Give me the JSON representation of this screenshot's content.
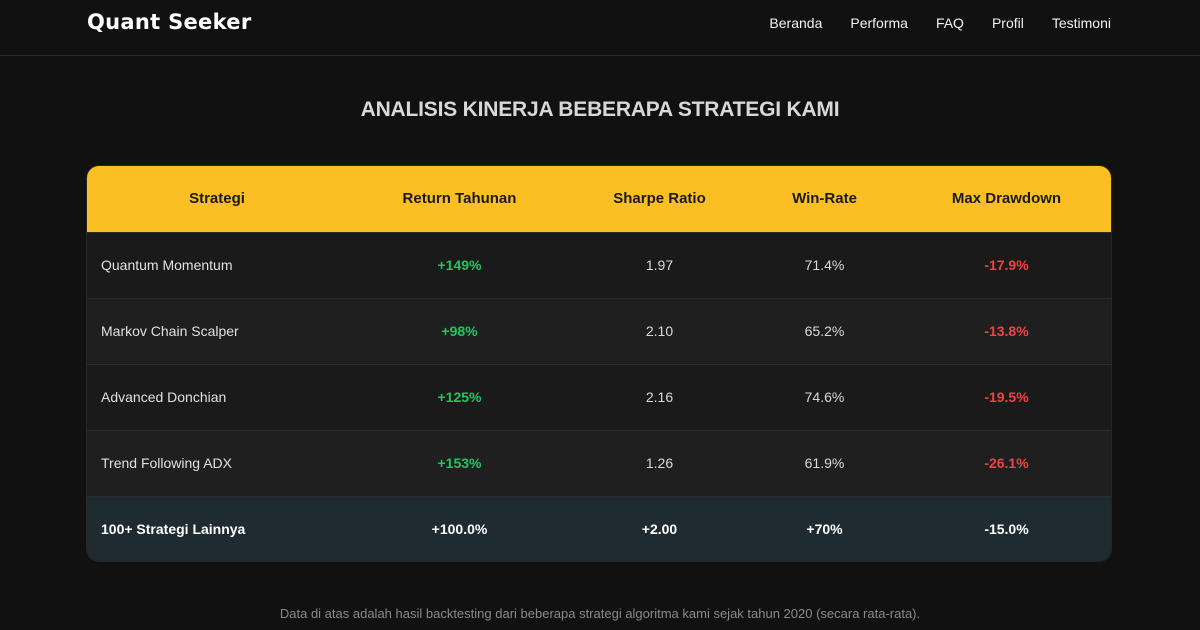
{
  "header": {
    "brand": "Quant Seeker",
    "nav": [
      "Beranda",
      "Performa",
      "FAQ",
      "Profil",
      "Testimoni"
    ]
  },
  "section": {
    "title": "ANALISIS KINERJA BEBERAPA STRATEGI KAMI"
  },
  "table": {
    "columns": [
      "Strategi",
      "Return Tahunan",
      "Sharpe Ratio",
      "Win-Rate",
      "Max Drawdown"
    ],
    "rows": [
      [
        "Quantum Momentum",
        "+149%",
        "1.97",
        "71.4%",
        "-17.9%"
      ],
      [
        "Markov Chain Scalper",
        "+98%",
        "2.10",
        "65.2%",
        "-13.8%"
      ],
      [
        "Advanced Donchian",
        "+125%",
        "2.16",
        "74.6%",
        "-19.5%"
      ],
      [
        "Trend Following ADX",
        "+153%",
        "1.26",
        "61.9%",
        "-26.1%"
      ]
    ],
    "summary": [
      "100+ Strategi Lainnya",
      "+100.0%",
      "+2.00",
      "+70%",
      "-15.0%"
    ]
  },
  "footnote": "Data di atas adalah hasil backtesting dari beberapa strategi algoritma kami sejak tahun 2020 (secara rata-rata).",
  "colors": {
    "background": "#111111",
    "header_accent": "#fbbf24",
    "positive": "#22c55e",
    "negative": "#ef4444",
    "summary_row": "#1e2b30"
  }
}
